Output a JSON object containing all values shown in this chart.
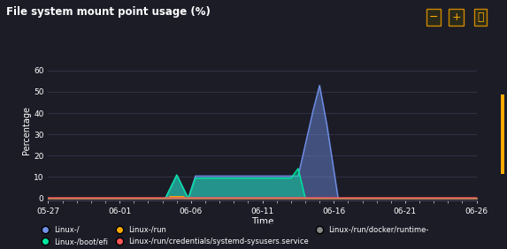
{
  "title": "File system mount point usage (%)",
  "xlabel": "Time",
  "ylabel": "Percentage",
  "background_color": "#1c1c27",
  "plot_bg_color": "#1c1c27",
  "grid_color": "#3a3a50",
  "text_color": "#ffffff",
  "ylim": [
    -1,
    65
  ],
  "yticks": [
    0,
    10,
    20,
    30,
    40,
    50,
    60
  ],
  "x_tick_labels": [
    "05-27",
    "06-01",
    "06-06",
    "06-11",
    "06-16",
    "06-21",
    "06-26"
  ],
  "x_tick_positions": [
    0,
    5,
    10,
    15,
    20,
    25,
    30
  ],
  "series": {
    "linux_root": {
      "label": "Linux-/",
      "color": "#7090e8",
      "alpha_fill": 0.45
    },
    "linux_boot": {
      "label": "Linux-/boot/efi",
      "color": "#00e5a0",
      "alpha_fill": 0.45
    },
    "linux_run": {
      "label": "Linux-/run",
      "color": "#ffaa00",
      "alpha_fill": 0.5
    },
    "linux_run_cred": {
      "label": "Linux-/run/credentials/systemd-sysusers.service",
      "color": "#ff5555",
      "alpha_fill": 0.5
    },
    "linux_run_docker": {
      "label": "Linux-/run/docker/runtime-",
      "color": "#888888",
      "alpha_fill": 0.3
    }
  }
}
